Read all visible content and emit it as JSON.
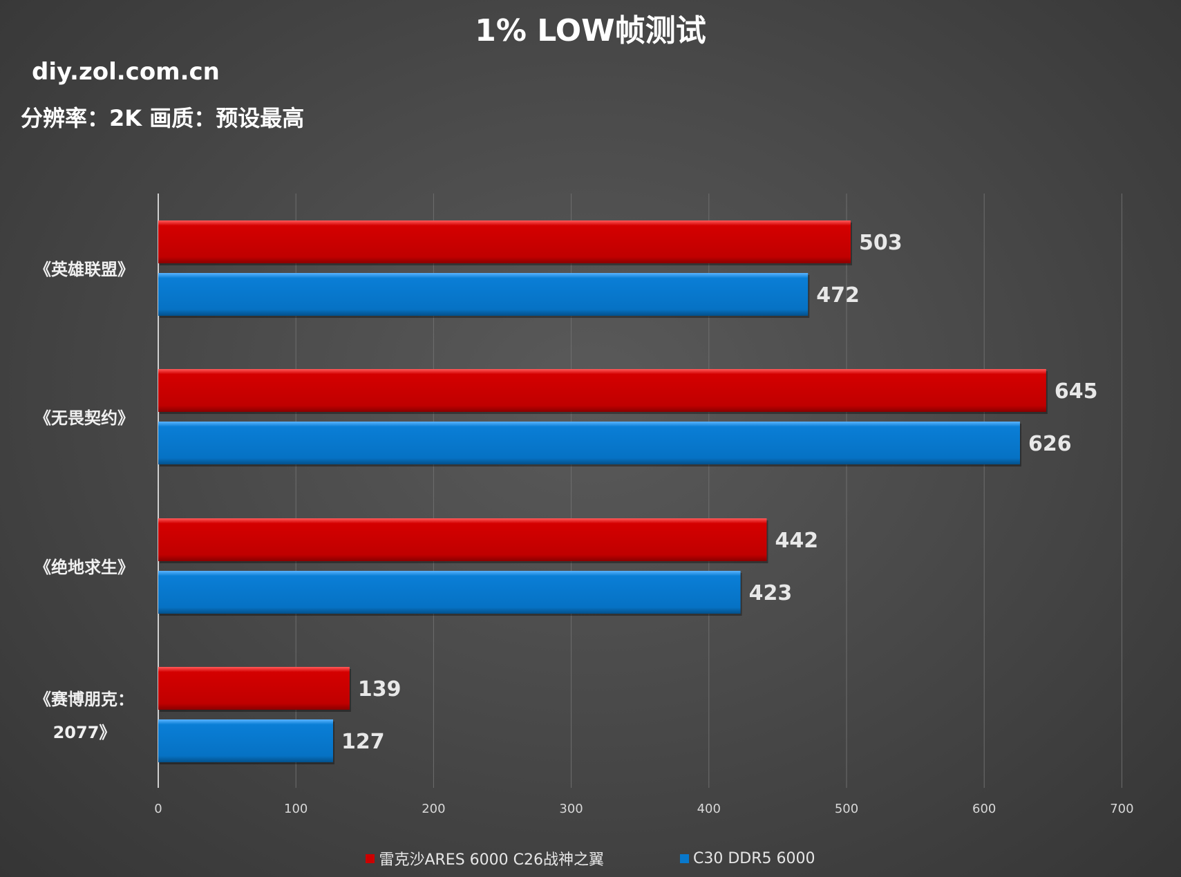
{
  "header": {
    "title": "1% LOW帧测试",
    "site": "diy.zol.com.cn",
    "subtitle": "分辨率：2K  画质：预设最高"
  },
  "chart_data": {
    "type": "bar",
    "orientation": "horizontal",
    "title": "1% LOW帧测试",
    "categories": [
      "《英雄联盟》",
      "《无畏契约》",
      "《绝地求生》",
      "《赛博朋克：2077》"
    ],
    "category_lines": [
      [
        "《英雄联盟》"
      ],
      [
        "《无畏契约》"
      ],
      [
        "《绝地求生》"
      ],
      [
        "《赛博朋克：",
        "2077》"
      ]
    ],
    "series": [
      {
        "name": "雷克沙ARES 6000 C26战神之翼",
        "color": "#cc0000",
        "values": [
          503,
          645,
          442,
          139
        ]
      },
      {
        "name": "C30 DDR5 6000",
        "color": "#0878cc",
        "values": [
          472,
          626,
          423,
          127
        ]
      }
    ],
    "xlim": [
      0,
      700
    ],
    "xticks": [
      0,
      100,
      200,
      300,
      400,
      500,
      600,
      700
    ],
    "grid": true,
    "legend": "bottom-center"
  }
}
